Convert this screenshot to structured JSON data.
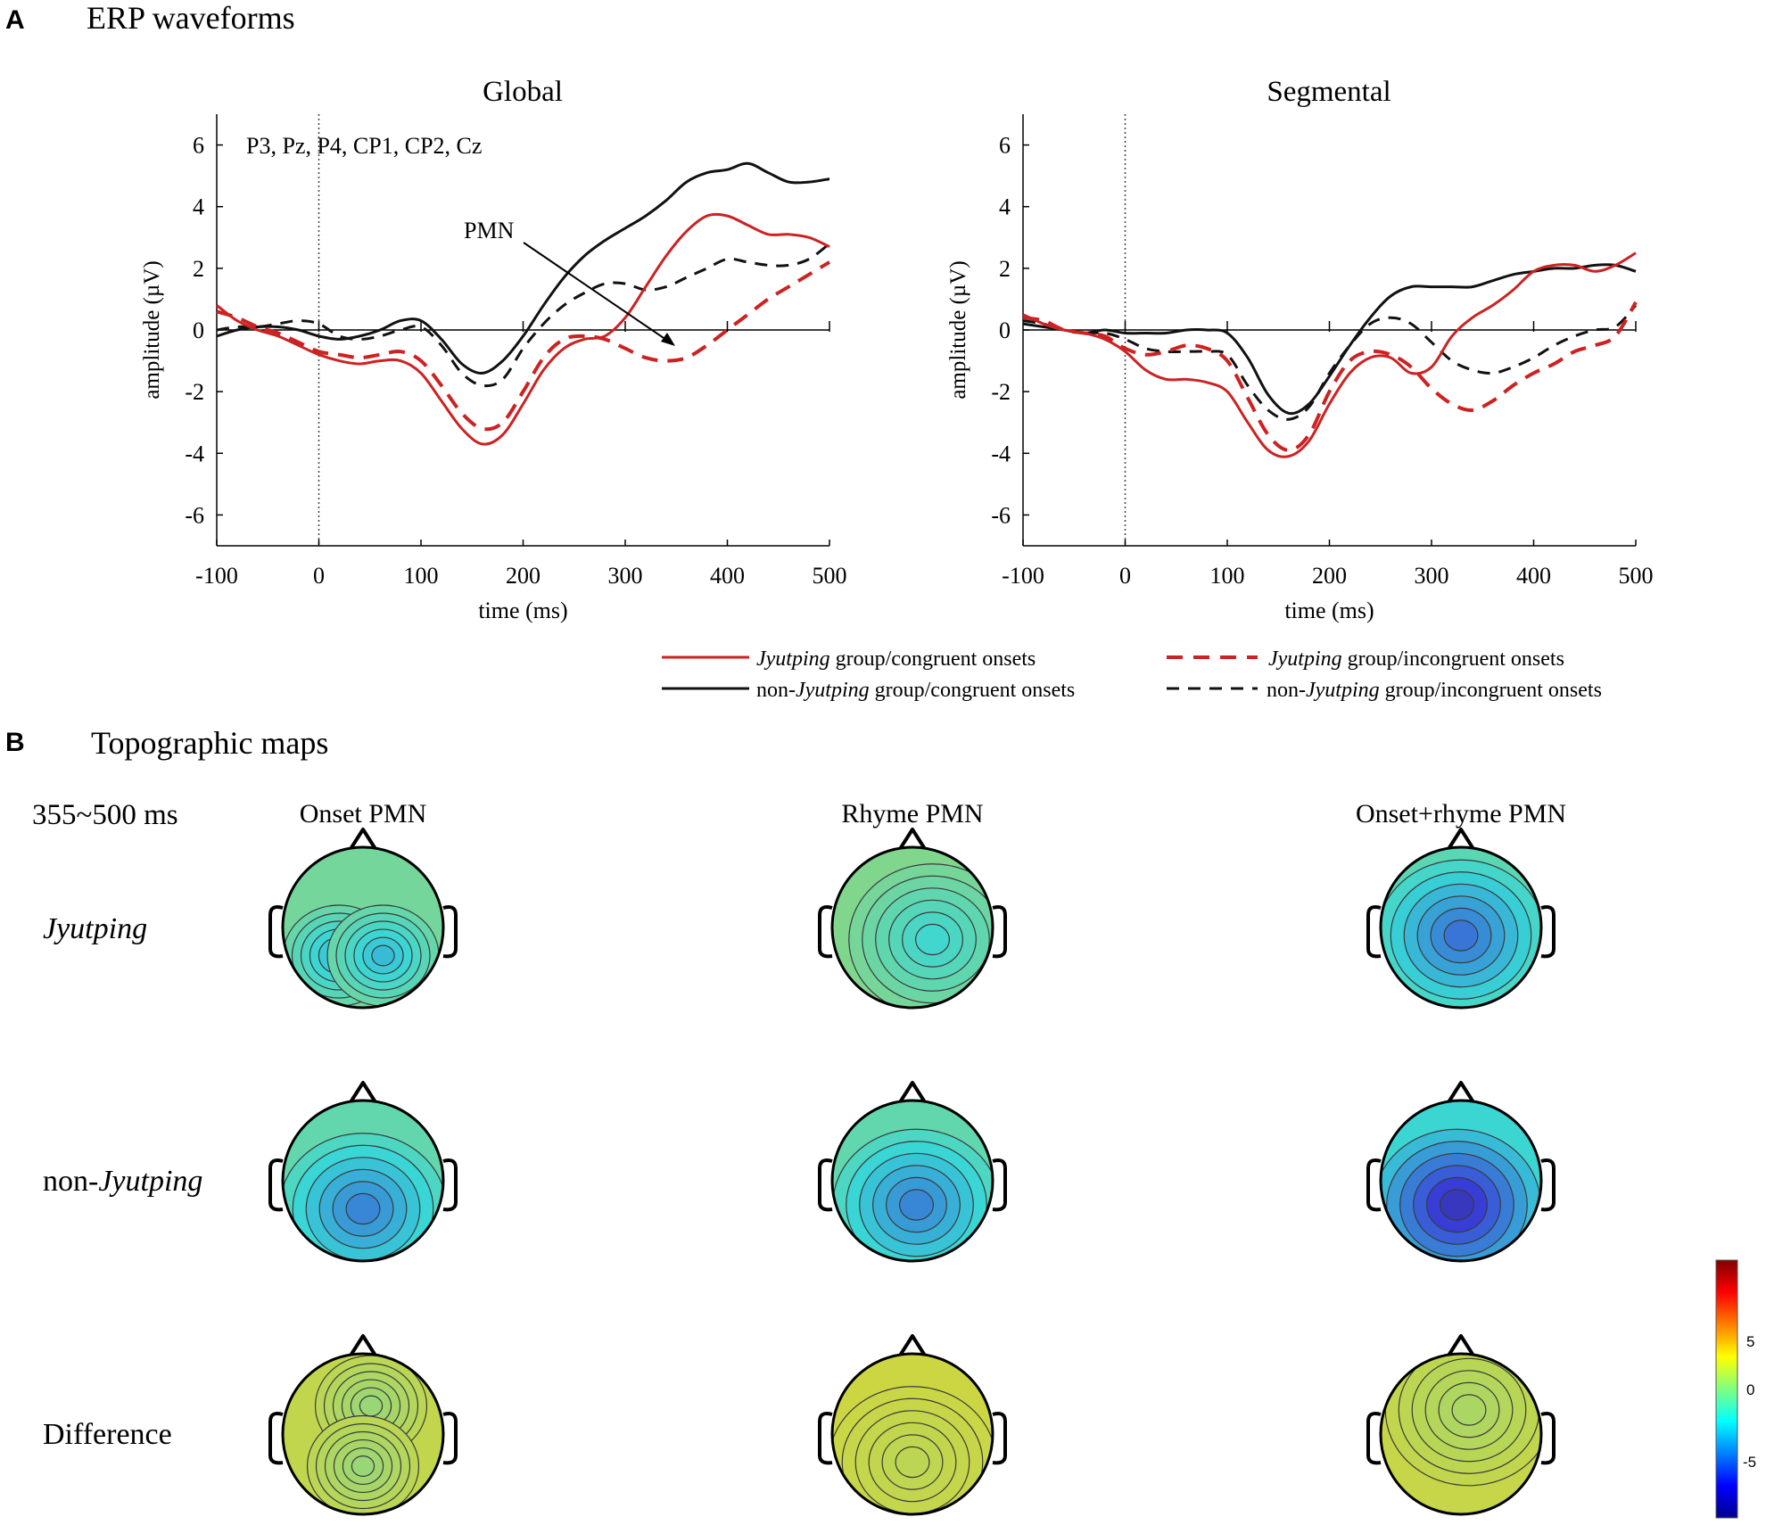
{
  "panel_a": {
    "letter": "A",
    "title": "ERP waveforms"
  },
  "panel_b": {
    "letter": "B",
    "title": "Topographic maps"
  },
  "legend": {
    "items": [
      {
        "pre": "",
        "italic": "Jyutping",
        "post": " group/congruent onsets",
        "color": "#cc2222",
        "dash": "solid"
      },
      {
        "pre": "",
        "italic": "Jyutping",
        "post": " group/incongruent onsets",
        "color": "#cc2222",
        "dash": "dashed"
      },
      {
        "pre": "non-",
        "italic": "Jyutping",
        "post": " group/congruent onsets",
        "color": "#111111",
        "dash": "solid"
      },
      {
        "pre": "non-",
        "italic": "Jyutping",
        "post": " group/incongruent onsets",
        "color": "#111111",
        "dash": "dashed"
      }
    ]
  },
  "chart_data": [
    {
      "type": "line",
      "title": "Global",
      "annotation_electrodes": "P3, Pz, P4, CP1, CP2, Cz",
      "annotation_pmn": "PMN",
      "xlabel": "time (ms)",
      "ylabel": "amplitude (µV)",
      "xlim": [
        -100,
        500
      ],
      "ylim": [
        -7,
        7
      ],
      "xticks": [
        -100,
        0,
        100,
        200,
        300,
        400,
        500
      ],
      "yticks": [
        -6,
        -4,
        -2,
        0,
        2,
        4,
        6
      ],
      "x": [
        -100,
        -80,
        -60,
        -40,
        -20,
        0,
        20,
        40,
        60,
        80,
        100,
        120,
        140,
        160,
        180,
        200,
        220,
        240,
        260,
        280,
        300,
        320,
        340,
        360,
        380,
        400,
        420,
        440,
        460,
        480,
        500
      ],
      "series": [
        {
          "name": "Jyutping group/congruent onsets",
          "color": "#cc2222",
          "dash": "solid",
          "values": [
            0.8,
            0.3,
            0,
            -0.2,
            -0.5,
            -0.8,
            -1.0,
            -1.1,
            -1.0,
            -1.0,
            -1.4,
            -2.3,
            -3.2,
            -3.7,
            -3.4,
            -2.4,
            -1.3,
            -0.6,
            -0.3,
            -0.2,
            0.4,
            1.4,
            2.4,
            3.2,
            3.7,
            3.7,
            3.4,
            3.1,
            3.1,
            3.0,
            2.7
          ]
        },
        {
          "name": "Jyutping group/incongruent onsets",
          "color": "#cc2222",
          "dash": "dashed",
          "values": [
            0.6,
            0.4,
            0.1,
            -0.1,
            -0.4,
            -0.7,
            -0.8,
            -0.9,
            -0.8,
            -0.7,
            -1.0,
            -1.8,
            -2.7,
            -3.2,
            -3.0,
            -2.0,
            -0.9,
            -0.3,
            -0.2,
            -0.3,
            -0.6,
            -0.9,
            -1.0,
            -0.9,
            -0.5,
            0,
            0.5,
            1.0,
            1.4,
            1.8,
            2.2
          ]
        },
        {
          "name": "non-Jyutping group/congruent onsets",
          "color": "#111111",
          "dash": "solid",
          "values": [
            -0.2,
            0,
            0.1,
            0.1,
            0,
            -0.2,
            -0.3,
            -0.2,
            0,
            0.3,
            0.3,
            -0.3,
            -1.1,
            -1.4,
            -1.0,
            -0.2,
            0.8,
            1.7,
            2.4,
            2.9,
            3.3,
            3.7,
            4.2,
            4.8,
            5.1,
            5.2,
            5.4,
            5.1,
            4.8,
            4.8,
            4.9
          ]
        },
        {
          "name": "non-Jyutping group/incongruent onsets",
          "color": "#111111",
          "dash": "dashed",
          "values": [
            0,
            0.1,
            0.1,
            0.2,
            0.3,
            0.2,
            -0.2,
            -0.3,
            -0.2,
            0,
            0.1,
            -0.5,
            -1.4,
            -1.8,
            -1.6,
            -0.6,
            0.2,
            0.8,
            1.2,
            1.5,
            1.5,
            1.3,
            1.4,
            1.7,
            2.0,
            2.3,
            2.2,
            2.1,
            2.1,
            2.3,
            2.8
          ]
        }
      ]
    },
    {
      "type": "line",
      "title": "Segmental",
      "xlabel": "time (ms)",
      "ylabel": "amplitude (µV)",
      "xlim": [
        -100,
        500
      ],
      "ylim": [
        -7,
        7
      ],
      "xticks": [
        -100,
        0,
        100,
        200,
        300,
        400,
        500
      ],
      "yticks": [
        -6,
        -4,
        -2,
        0,
        2,
        4,
        6
      ],
      "x": [
        -100,
        -80,
        -60,
        -40,
        -20,
        0,
        20,
        40,
        60,
        80,
        100,
        120,
        140,
        160,
        180,
        200,
        220,
        240,
        260,
        280,
        300,
        320,
        340,
        360,
        380,
        400,
        420,
        440,
        460,
        480,
        500
      ],
      "series": [
        {
          "name": "Jyutping group/congruent onsets",
          "color": "#cc2222",
          "dash": "solid",
          "values": [
            0.5,
            0.2,
            0,
            -0.1,
            -0.3,
            -0.7,
            -1.3,
            -1.6,
            -1.6,
            -1.7,
            -2.0,
            -3.0,
            -3.9,
            -4.1,
            -3.6,
            -2.4,
            -1.4,
            -0.9,
            -0.9,
            -1.4,
            -1.2,
            -0.2,
            0.4,
            0.8,
            1.3,
            1.9,
            2.1,
            2.1,
            1.9,
            2.1,
            2.5
          ]
        },
        {
          "name": "Jyutping group/incongruent onsets",
          "color": "#cc2222",
          "dash": "dashed",
          "values": [
            0.4,
            0.3,
            0,
            -0.1,
            -0.2,
            -0.6,
            -0.8,
            -0.7,
            -0.5,
            -0.6,
            -1.0,
            -2.2,
            -3.4,
            -3.9,
            -3.4,
            -2.0,
            -1.0,
            -0.7,
            -0.8,
            -1.2,
            -1.9,
            -2.4,
            -2.6,
            -2.3,
            -1.8,
            -1.4,
            -1.1,
            -0.7,
            -0.5,
            -0.2,
            0.9
          ]
        },
        {
          "name": "non-Jyutping group/congruent onsets",
          "color": "#111111",
          "dash": "solid",
          "values": [
            0.2,
            0.1,
            0,
            -0.1,
            0,
            -0.1,
            -0.1,
            -0.1,
            0,
            0,
            -0.1,
            -0.9,
            -2.1,
            -2.7,
            -2.4,
            -1.5,
            -0.5,
            0.4,
            1.1,
            1.4,
            1.4,
            1.4,
            1.4,
            1.6,
            1.8,
            1.9,
            2.0,
            2.0,
            2.1,
            2.1,
            1.9
          ]
        },
        {
          "name": "non-Jyutping group/incongruent onsets",
          "color": "#111111",
          "dash": "dashed",
          "values": [
            0.3,
            0.2,
            0,
            -0.1,
            -0.1,
            -0.3,
            -0.6,
            -0.7,
            -0.7,
            -0.7,
            -0.8,
            -1.8,
            -2.6,
            -2.9,
            -2.5,
            -1.4,
            -0.5,
            0.2,
            0.4,
            0.2,
            -0.4,
            -1.0,
            -1.3,
            -1.4,
            -1.2,
            -0.9,
            -0.5,
            -0.2,
            0,
            0.1,
            0.8
          ]
        }
      ]
    },
    {
      "type": "heatmap",
      "title": "Topographic maps",
      "time_window": "355~500 ms",
      "columns": [
        "Onset PMN",
        "Rhyme PMN",
        "Onset+rhyme PMN"
      ],
      "rows": [
        "Jyutping",
        "non-Jyutping",
        "Difference"
      ],
      "colorbar": {
        "ticks": [
          5,
          0,
          -5
        ],
        "min": -9,
        "max": 9
      },
      "approx_min_values": [
        [
          -3,
          -2,
          -5
        ],
        [
          -4.5,
          -4.5,
          -7.5
        ],
        [
          0.5,
          1.5,
          1
        ]
      ]
    }
  ]
}
